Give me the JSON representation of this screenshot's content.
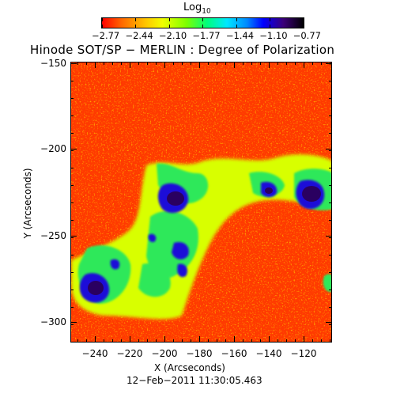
{
  "colorbar": {
    "title": "Log",
    "title_subscript": "10",
    "labels": [
      "−2.77",
      "−2.44",
      "−2.10",
      "−1.77",
      "−1.44",
      "−1.10",
      "−0.77"
    ]
  },
  "title": "Hinode SOT/SP − MERLIN : Degree of Polarization",
  "axes": {
    "xlabel": "X (Arcseconds)",
    "ylabel": "Y (Arcseconds)",
    "xticks": [
      "−240",
      "−220",
      "−200",
      "−180",
      "−160",
      "−140",
      "−120"
    ],
    "yticks": [
      "−150",
      "−200",
      "−250",
      "−300"
    ]
  },
  "timestamp": "12−Feb−2011 11:30:05.463",
  "colors": {
    "background_field": "#ff3a00",
    "spot_core": "#2a0060",
    "spot_umbra": "#1b10d8",
    "plage_green": "#2ee85a",
    "plage_yellow": "#d8ff00"
  }
}
